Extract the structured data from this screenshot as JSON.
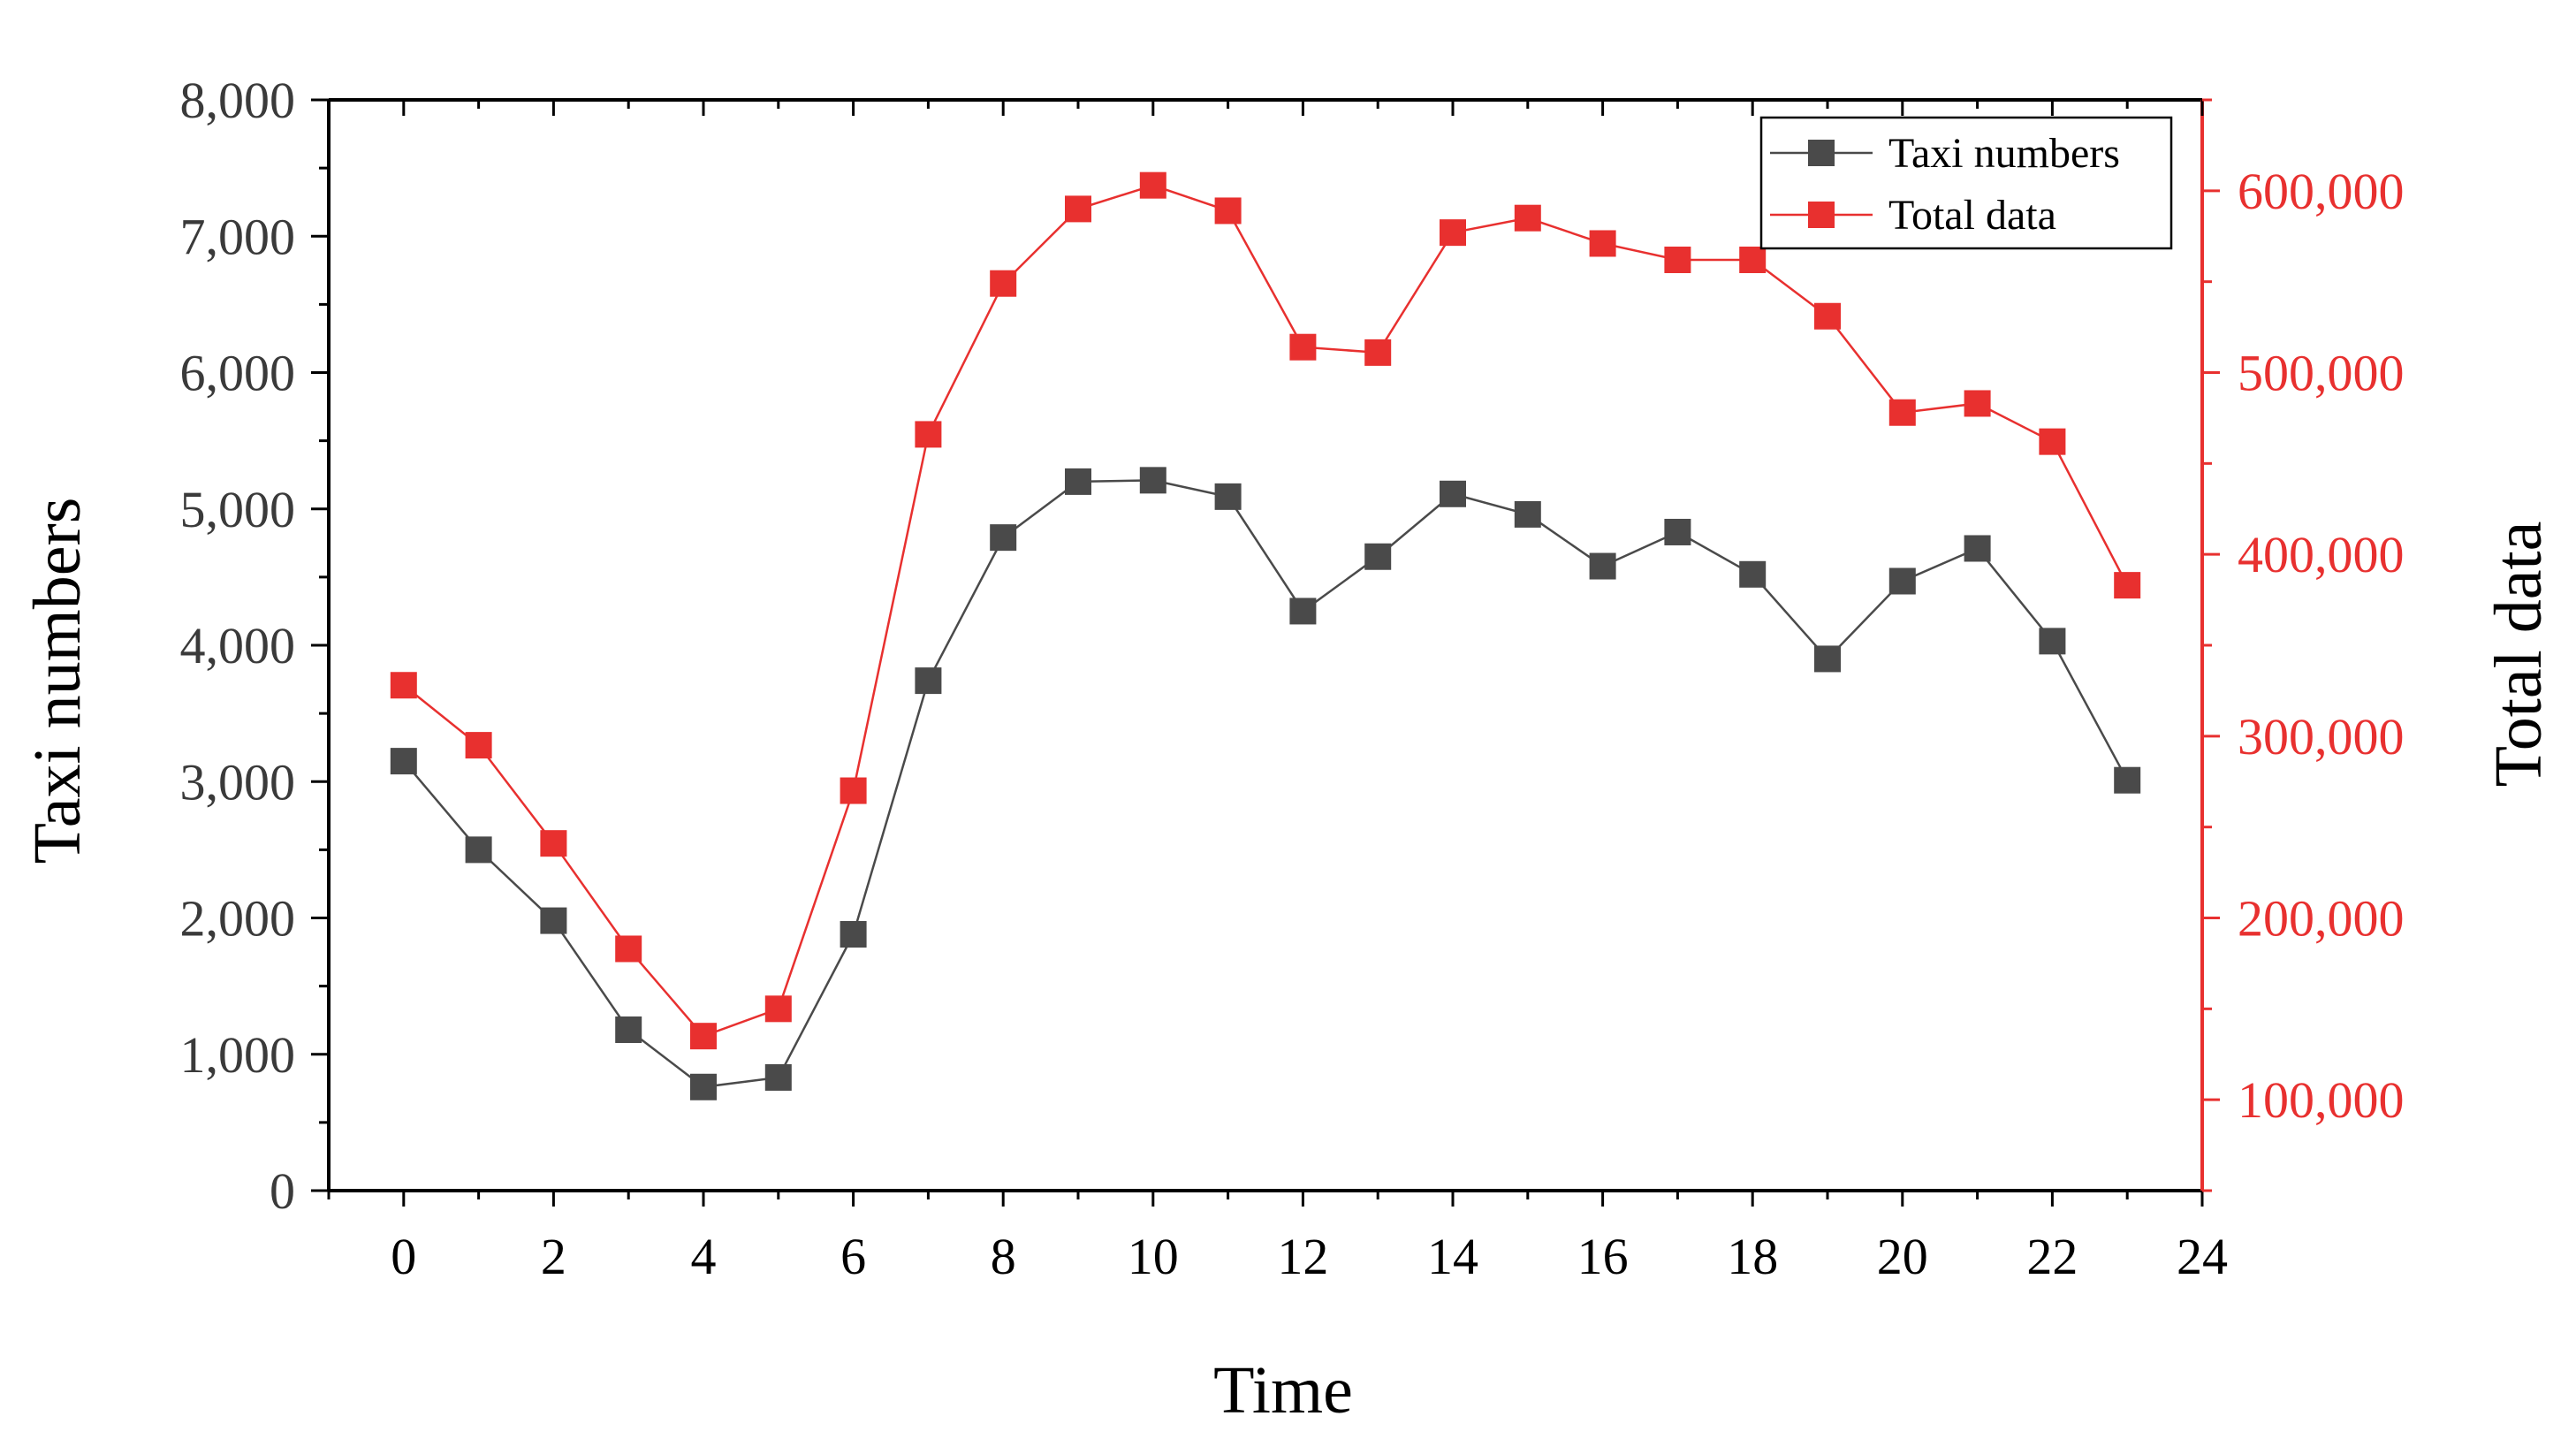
{
  "chart_data": {
    "type": "line",
    "x": [
      0,
      1,
      2,
      3,
      4,
      5,
      6,
      7,
      8,
      9,
      10,
      11,
      12,
      13,
      14,
      15,
      16,
      17,
      18,
      19,
      20,
      21,
      22,
      23
    ],
    "series": [
      {
        "name": "Taxi numbers",
        "axis": "left",
        "color": "#4a4a4a",
        "values": [
          3150,
          2500,
          1980,
          1180,
          760,
          830,
          1880,
          3740,
          4790,
          5200,
          5210,
          5090,
          4250,
          4650,
          5110,
          4960,
          4580,
          4830,
          4520,
          3900,
          4470,
          4710,
          4030,
          3010
        ]
      },
      {
        "name": "Total data",
        "axis": "right",
        "color": "#e8302f",
        "values": [
          328000,
          295000,
          241000,
          183000,
          135000,
          150000,
          270000,
          466000,
          549000,
          590000,
          603000,
          589000,
          514000,
          511000,
          577000,
          585000,
          571000,
          562000,
          562000,
          531000,
          478000,
          483000,
          462000,
          383000
        ]
      }
    ],
    "xlabel": "Time",
    "ylabel": "Taxi numbers",
    "y2label": "Total data",
    "xlim": [
      -1,
      24
    ],
    "ylim": [
      0,
      8000
    ],
    "y2lim": [
      50000,
      650000
    ],
    "xticks": [
      0,
      2,
      4,
      6,
      8,
      10,
      12,
      14,
      16,
      18,
      20,
      22,
      24
    ],
    "xtick_labels": [
      "0",
      "2",
      "4",
      "6",
      "8",
      "10",
      "12",
      "14",
      "16",
      "18",
      "20",
      "22",
      "24"
    ],
    "yticks": [
      0,
      1000,
      2000,
      3000,
      4000,
      5000,
      6000,
      7000,
      8000
    ],
    "ytick_labels": [
      "0",
      "1,000",
      "2,000",
      "3,000",
      "4,000",
      "5,000",
      "6,000",
      "7,000",
      "8,000"
    ],
    "y2ticks": [
      100000,
      200000,
      300000,
      400000,
      500000,
      600000
    ],
    "y2tick_labels": [
      "100,000",
      "200,000",
      "300,000",
      "400,000",
      "500,000",
      "600,000"
    ],
    "legend": {
      "position": "top-right",
      "entries": [
        "Taxi numbers",
        "Total data"
      ]
    },
    "grid": false
  },
  "colors": {
    "left_axis": "#000000",
    "right_axis": "#e8302f",
    "left_tick_text": "#3a3a3a",
    "right_tick_text": "#e8302f"
  }
}
